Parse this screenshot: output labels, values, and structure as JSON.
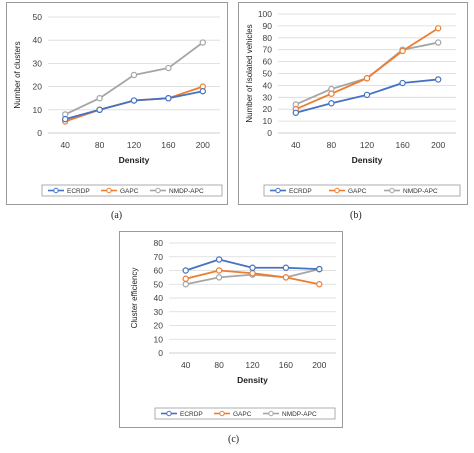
{
  "chart_data": [
    {
      "type": "line",
      "categories": [
        "40",
        "80",
        "120",
        "160",
        "200"
      ],
      "xlabel": "Density",
      "ylabel": "Number of clusters",
      "ylim": [
        0,
        50
      ],
      "yticks": [
        "0",
        "10",
        "20",
        "30",
        "40",
        "50"
      ],
      "grid": true,
      "legend": "bottom",
      "series": [
        {
          "name": "ECRDP",
          "color": "#4472c4",
          "values": [
            6,
            10,
            14,
            15,
            18
          ]
        },
        {
          "name": "GAPC",
          "color": "#ed7d31",
          "values": [
            5,
            10,
            14,
            15,
            20
          ]
        },
        {
          "name": "NMDP-APC",
          "color": "#a5a5a5",
          "values": [
            8,
            15,
            25,
            28,
            39
          ]
        }
      ]
    },
    {
      "type": "line",
      "categories": [
        "40",
        "80",
        "120",
        "160",
        "200"
      ],
      "xlabel": "Density",
      "ylabel": "Number of isolated vehicles",
      "ylim": [
        0,
        100
      ],
      "yticks": [
        "0",
        "10",
        "20",
        "30",
        "40",
        "50",
        "60",
        "70",
        "80",
        "90",
        "100"
      ],
      "grid": true,
      "legend": "bottom",
      "series": [
        {
          "name": "ECRDP",
          "color": "#4472c4",
          "values": [
            17,
            25,
            32,
            42,
            45
          ]
        },
        {
          "name": "GAPC",
          "color": "#ed7d31",
          "values": [
            20,
            33,
            46,
            69,
            88
          ]
        },
        {
          "name": "NMDP-APC",
          "color": "#a5a5a5",
          "values": [
            24,
            37,
            46,
            70,
            76
          ]
        }
      ]
    },
    {
      "type": "line",
      "categories": [
        "40",
        "80",
        "120",
        "160",
        "200"
      ],
      "xlabel": "Density",
      "ylabel": "Cluster efficiency",
      "ylim": [
        0,
        80
      ],
      "yticks": [
        "0",
        "10",
        "20",
        "30",
        "40",
        "50",
        "60",
        "70",
        "80"
      ],
      "grid": true,
      "legend": "bottom",
      "series": [
        {
          "name": "ECRDP",
          "color": "#4472c4",
          "values": [
            60,
            68,
            62,
            62,
            61
          ]
        },
        {
          "name": "GAPC",
          "color": "#ed7d31",
          "values": [
            54,
            60,
            58,
            55,
            50
          ]
        },
        {
          "name": "NMDP-APC",
          "color": "#a5a5a5",
          "values": [
            50,
            55,
            57,
            55,
            61
          ]
        }
      ]
    }
  ],
  "captions": [
    "(a)",
    "(b)",
    "(c)"
  ]
}
